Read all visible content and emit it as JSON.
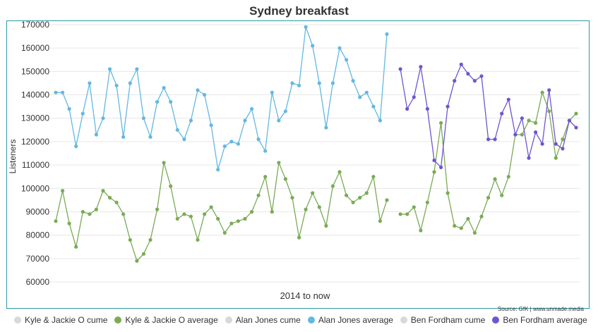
{
  "chart_data": {
    "type": "line",
    "title": "Sydney breakfast",
    "xlabel": "2014 to now",
    "ylabel": "Listeners",
    "ylim": [
      60000,
      170000
    ],
    "yticks": [
      60000,
      70000,
      80000,
      90000,
      100000,
      110000,
      120000,
      130000,
      140000,
      150000,
      160000,
      170000
    ],
    "grid": true,
    "legend_position": "bottom",
    "source": "Source: GfK | www.unmade.media",
    "legend": [
      {
        "label": "Kyle & Jackie O cume",
        "color": "#d9d9d9"
      },
      {
        "label": "Kyle & Jackie O average",
        "color": "#7aab55"
      },
      {
        "label": "Alan Jones cume",
        "color": "#d9d9d9"
      },
      {
        "label": "Alan Jones average",
        "color": "#63b8e2"
      },
      {
        "label": "Ben Fordham cume",
        "color": "#d9d9d9"
      },
      {
        "label": "Ben Fordham average",
        "color": "#7055d1"
      }
    ],
    "series": [
      {
        "name": "Kyle & Jackie O average",
        "color": "#7aab55",
        "values": [
          86000,
          99000,
          85000,
          75000,
          90000,
          89000,
          91000,
          99000,
          96000,
          94000,
          89000,
          78000,
          69000,
          72000,
          78000,
          91000,
          111000,
          101000,
          87000,
          89000,
          88000,
          78000,
          89000,
          92000,
          87000,
          81000,
          85000,
          86000,
          87000,
          90000,
          97000,
          105000,
          90000,
          111000,
          104000,
          96000,
          79000,
          91000,
          98000,
          92000,
          84000,
          101000,
          107000,
          97000,
          94000,
          96000,
          98000,
          105000,
          86000,
          95000,
          null,
          89000,
          89000,
          92000,
          82000,
          94000,
          107000,
          128000,
          98000,
          84000,
          83000,
          87000,
          81000,
          88000,
          96000,
          104000,
          97000,
          105000,
          123000,
          123000,
          129000,
          128000,
          141000,
          133000,
          113000,
          121000,
          129000,
          132000
        ]
      },
      {
        "name": "Alan Jones average",
        "color": "#63b8e2",
        "values": [
          141000,
          141000,
          134000,
          118000,
          132000,
          145000,
          123000,
          130000,
          151000,
          144000,
          122000,
          145000,
          151000,
          130000,
          122000,
          137000,
          143000,
          137000,
          125000,
          121000,
          129000,
          142000,
          140000,
          127000,
          108000,
          118000,
          120000,
          119000,
          129000,
          134000,
          121000,
          116000,
          141000,
          129000,
          133000,
          145000,
          144000,
          169000,
          161000,
          145000,
          126000,
          145000,
          160000,
          155000,
          146000,
          139000,
          141000,
          135000,
          129000,
          166000
        ]
      },
      {
        "name": "Ben Fordham average",
        "color": "#7055d1",
        "values": [
          null,
          null,
          null,
          null,
          null,
          null,
          null,
          null,
          null,
          null,
          null,
          null,
          null,
          null,
          null,
          null,
          null,
          null,
          null,
          null,
          null,
          null,
          null,
          null,
          null,
          null,
          null,
          null,
          null,
          null,
          null,
          null,
          null,
          null,
          null,
          null,
          null,
          null,
          null,
          null,
          null,
          null,
          null,
          null,
          null,
          null,
          null,
          null,
          null,
          null,
          null,
          151000,
          134000,
          139000,
          152000,
          134000,
          112000,
          109000,
          135000,
          146000,
          153000,
          149000,
          146000,
          148000,
          121000,
          121000,
          132000,
          138000,
          123000,
          130000,
          113000,
          124000,
          119000,
          142000,
          119000,
          117000,
          129000,
          126000
        ]
      }
    ]
  }
}
